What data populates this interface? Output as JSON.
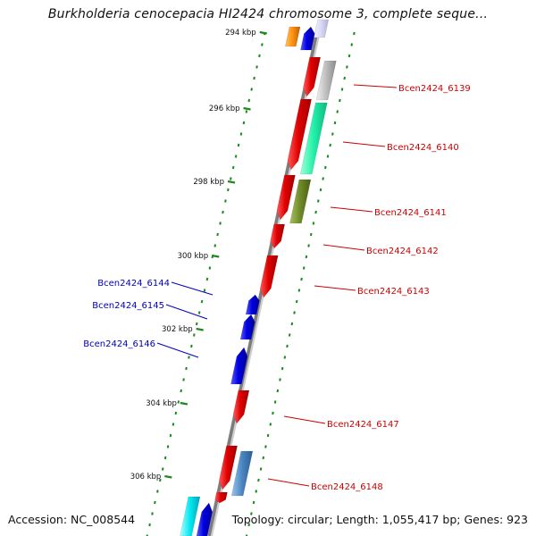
{
  "title": "Burkholderia cenocepacia HI2424 chromosome 3, complete seque...",
  "footer": {
    "accession": "Accession: NC_008544",
    "summary": "Topology: circular; Length: 1,055,417 bp; Genes: 923"
  },
  "ticks": [
    "294 kbp",
    "296 kbp",
    "298 kbp",
    "300 kbp",
    "302 kbp",
    "304 kbp",
    "306 kbp"
  ],
  "colors": {
    "forward_gene": "#e60000",
    "reverse_gene": "#0000e6",
    "forward_label": "#cc0000",
    "reverse_label": "#0000bb",
    "backbone": "#8a8a8a",
    "tick": "#1a8a1a"
  },
  "genes": [
    {
      "label": "Bcen2424_6139",
      "strand": "forward"
    },
    {
      "label": "Bcen2424_6140",
      "strand": "forward"
    },
    {
      "label": "Bcen2424_6141",
      "strand": "forward"
    },
    {
      "label": "Bcen2424_6142",
      "strand": "forward"
    },
    {
      "label": "Bcen2424_6143",
      "strand": "forward"
    },
    {
      "label": "Bcen2424_6144",
      "strand": "reverse"
    },
    {
      "label": "Bcen2424_6145",
      "strand": "reverse"
    },
    {
      "label": "Bcen2424_6146",
      "strand": "reverse"
    },
    {
      "label": "Bcen2424_6147",
      "strand": "forward"
    },
    {
      "label": "Bcen2424_6148",
      "strand": "forward"
    }
  ]
}
